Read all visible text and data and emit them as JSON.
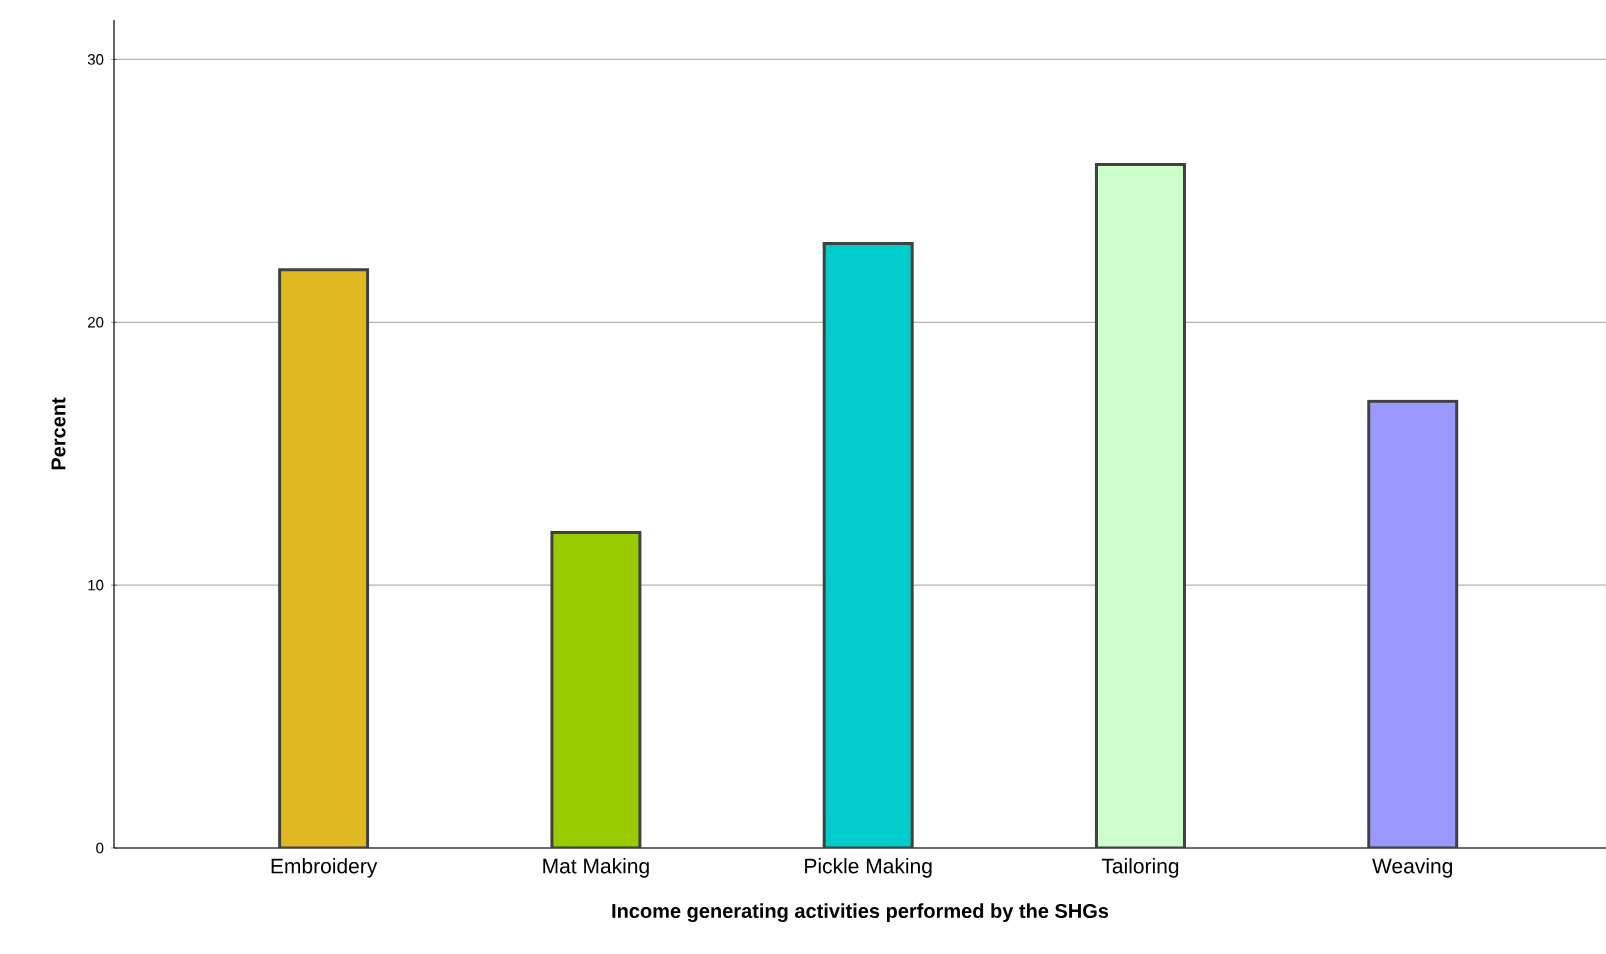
{
  "chart_data": {
    "type": "bar",
    "xlabel": "Income generating activities performed by the SHGs",
    "ylabel": "Percent",
    "categories": [
      "Embroidery",
      "Mat Making",
      "Pickle Making",
      "Tailoring",
      "Weaving"
    ],
    "values": [
      22,
      12,
      23,
      26,
      17
    ],
    "colors": [
      "#e0b820",
      "#99cc00",
      "#00cccc",
      "#ccffcc",
      "#9999ff"
    ],
    "ylim": [
      0,
      31.5
    ],
    "yticks": [
      0,
      10,
      20,
      30
    ],
    "grid": "y"
  }
}
